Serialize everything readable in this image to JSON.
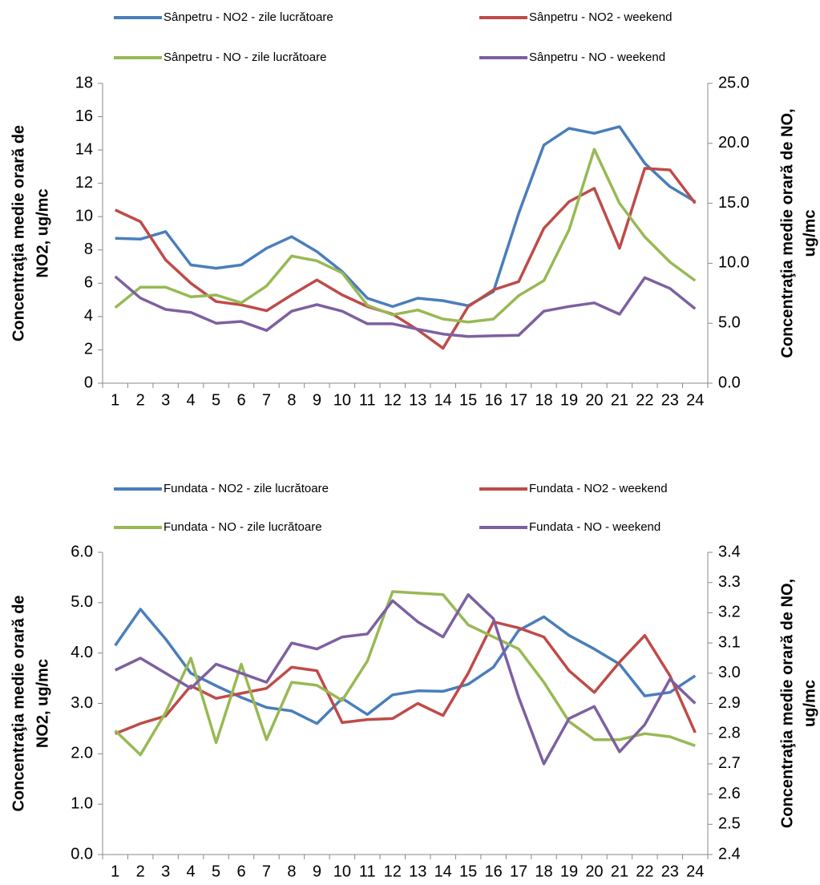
{
  "chart_data": [
    {
      "type": "line",
      "categories": [
        "1",
        "2",
        "3",
        "4",
        "5",
        "6",
        "7",
        "8",
        "9",
        "10",
        "11",
        "12",
        "13",
        "14",
        "15",
        "16",
        "17",
        "18",
        "19",
        "20",
        "21",
        "22",
        "23",
        "24"
      ],
      "y_label": [
        "Concentraţia medie orară de",
        "NO2, ug/mc"
      ],
      "y2_label": [
        "Concentraţia medie orară de NO,",
        "ug/mc"
      ],
      "ylim": [
        0,
        18
      ],
      "yticks": [
        0,
        2,
        4,
        6,
        8,
        10,
        12,
        14,
        16,
        18
      ],
      "y2lim": [
        0,
        25
      ],
      "y2ticks": [
        {
          "value": 0,
          "label": "0.0"
        },
        {
          "value": 5,
          "label": "5.0"
        },
        {
          "value": 10,
          "label": "10.0"
        },
        {
          "value": 15,
          "label": "15.0"
        },
        {
          "value": 20,
          "label": "20.0"
        },
        {
          "value": 25,
          "label": "25.0"
        }
      ],
      "series": [
        {
          "name": "Sânpetru - NO2 - zile lucrătoare",
          "color": "#4a7ebb",
          "values": [
            8.7,
            8.65,
            9.1,
            7.1,
            6.9,
            7.1,
            8.1,
            8.8,
            7.9,
            6.7,
            5.1,
            4.6,
            5.1,
            4.95,
            4.65,
            5.5,
            10.2,
            14.3,
            15.3,
            15.0,
            15.4,
            13.2,
            11.8,
            10.9
          ]
        },
        {
          "name": "Sânpetru - NO2 - weekend",
          "color": "#be4b48",
          "values": [
            10.4,
            9.7,
            7.4,
            6.0,
            4.9,
            4.7,
            4.35,
            5.3,
            6.2,
            5.3,
            4.6,
            4.15,
            3.2,
            2.1,
            4.6,
            5.6,
            6.1,
            9.3,
            10.9,
            11.7,
            8.1,
            12.9,
            12.8,
            10.8
          ]
        },
        {
          "name": "Sânpetru - NO - zile lucrătoare",
          "color": "#98b954",
          "axis": "y2",
          "values": [
            6.3,
            8.0,
            8.0,
            7.2,
            7.35,
            6.7,
            8.1,
            10.6,
            10.2,
            9.2,
            6.5,
            5.7,
            6.1,
            5.35,
            5.1,
            5.35,
            7.3,
            8.55,
            12.8,
            19.5,
            15.0,
            12.2,
            10.1,
            8.55
          ]
        },
        {
          "name": "Sânpetru - NO - weekend",
          "color": "#7d60a0",
          "axis": "y2",
          "values": [
            8.9,
            7.1,
            6.15,
            5.9,
            5.0,
            5.15,
            4.4,
            6.0,
            6.55,
            6.0,
            4.95,
            4.95,
            4.5,
            4.1,
            3.9,
            3.95,
            4.0,
            6.0,
            6.4,
            6.7,
            5.75,
            8.8,
            7.9,
            6.2
          ]
        }
      ]
    },
    {
      "type": "line",
      "categories": [
        "1",
        "2",
        "3",
        "4",
        "5",
        "6",
        "7",
        "8",
        "9",
        "10",
        "11",
        "12",
        "13",
        "14",
        "15",
        "16",
        "17",
        "18",
        "19",
        "20",
        "21",
        "22",
        "23",
        "24"
      ],
      "y_label": [
        "Concentraţia medie orară de",
        "NO2, ug/mc"
      ],
      "y2_label": [
        "Concentraţia medie orară de NO,",
        "ug/mc"
      ],
      "ylim": [
        0,
        6
      ],
      "yticks": [
        {
          "value": 0,
          "label": "0.0"
        },
        {
          "value": 1,
          "label": "1.0"
        },
        {
          "value": 2,
          "label": "2.0"
        },
        {
          "value": 3,
          "label": "3.0"
        },
        {
          "value": 4,
          "label": "4.0"
        },
        {
          "value": 5,
          "label": "5.0"
        },
        {
          "value": 6,
          "label": "6.0"
        }
      ],
      "y2lim": [
        2.4,
        3.4
      ],
      "y2ticks": [
        2.4,
        2.5,
        2.6,
        2.7,
        2.8,
        2.9,
        {
          "value": 3,
          "label": "3.0"
        },
        3.1,
        3.2,
        3.3,
        3.4
      ],
      "series": [
        {
          "name": "Fundata - NO2 - zile lucrătoare",
          "color": "#4a7ebb",
          "values": [
            4.15,
            4.87,
            4.28,
            3.6,
            3.35,
            3.12,
            2.92,
            2.85,
            2.6,
            3.1,
            2.78,
            3.17,
            3.25,
            3.24,
            3.38,
            3.72,
            4.45,
            4.72,
            4.35,
            4.08,
            3.78,
            3.15,
            3.22,
            3.55
          ]
        },
        {
          "name": "Fundata - NO2 - weekend",
          "color": "#be4b48",
          "values": [
            2.4,
            2.6,
            2.75,
            3.35,
            3.1,
            3.2,
            3.3,
            3.72,
            3.65,
            2.62,
            2.68,
            2.7,
            3.0,
            2.76,
            3.6,
            4.62,
            4.5,
            4.32,
            3.65,
            3.22,
            3.82,
            4.35,
            3.55,
            2.42
          ]
        },
        {
          "name": "Fundata - NO - zile lucrătoare",
          "color": "#98b954",
          "axis": "y2",
          "values": [
            2.81,
            2.73,
            2.87,
            3.05,
            2.77,
            3.03,
            2.78,
            2.97,
            2.96,
            2.91,
            3.04,
            3.27,
            3.265,
            3.26,
            3.16,
            3.12,
            3.08,
            2.97,
            2.84,
            2.78,
            2.78,
            2.8,
            2.79,
            2.76
          ]
        },
        {
          "name": "Fundata - NO - weekend",
          "color": "#7d60a0",
          "axis": "y2",
          "values": [
            3.01,
            3.05,
            3.0,
            2.95,
            3.03,
            3.0,
            2.97,
            3.1,
            3.08,
            3.12,
            3.13,
            3.24,
            3.17,
            3.12,
            3.26,
            3.18,
            2.92,
            2.7,
            2.85,
            2.89,
            2.74,
            2.83,
            2.98,
            2.9
          ]
        }
      ]
    }
  ]
}
